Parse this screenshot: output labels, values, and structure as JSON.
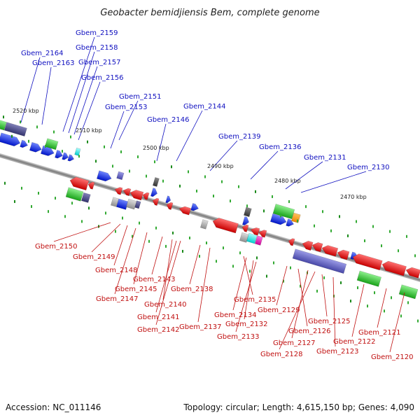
{
  "title": "Geobacter bemidjiensis Bem, complete genome",
  "footer": {
    "accession": "Accession: NC_011146",
    "summary": "Topology: circular; Length: 4,615,150 bp; Genes: 4,090"
  },
  "ruler": [
    "2520 kbp",
    "2510 kbp",
    "2500 kbp",
    "2490 kbp",
    "2480 kbp",
    "2470 kbp"
  ],
  "forward_genes": [
    "Gbem_2164",
    "Gbem_2163",
    "Gbem_2159",
    "Gbem_2158",
    "Gbem_2157",
    "Gbem_2156",
    "Gbem_2151",
    "Gbem_2153",
    "Gbem_2146",
    "Gbem_2144",
    "Gbem_2139",
    "Gbem_2136",
    "Gbem_2131",
    "Gbem_2130"
  ],
  "reverse_genes": [
    "Gbem_2150",
    "Gbem_2149",
    "Gbem_2148",
    "Gbem_2147",
    "Gbem_2145",
    "Gbem_2143",
    "Gbem_2140",
    "Gbem_2141",
    "Gbem_2142",
    "Gbem_2138",
    "Gbem_2137",
    "Gbem_2135",
    "Gbem_2134",
    "Gbem_2132",
    "Gbem_2133",
    "Gbem_2129",
    "Gbem_2126",
    "Gbem_2127",
    "Gbem_2128",
    "Gbem_2125",
    "Gbem_2123",
    "Gbem_2122",
    "Gbem_2121",
    "Gbem_2120"
  ],
  "colors": {
    "forward": "#1010c0",
    "reverse": "#c01010",
    "gene_blue": "#0022ee",
    "gene_red": "#ee1111",
    "rna_green": "#33cc33",
    "pseudo_grey": "#999999",
    "purple": "#6060c0",
    "backbone": "#888888"
  }
}
